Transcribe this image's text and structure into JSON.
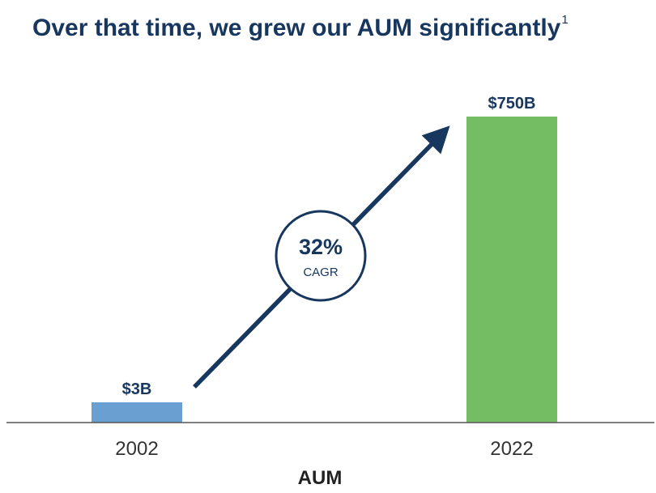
{
  "title": {
    "text": "Over that time, we grew our AUM significantly",
    "footnote": "1"
  },
  "chart_data": {
    "type": "bar",
    "categories": [
      "2002",
      "2022"
    ],
    "values": [
      3,
      750
    ],
    "value_labels": [
      "$3B",
      "$750B"
    ],
    "xlabel": "AUM",
    "ylabel": "",
    "ylim": [
      0,
      750
    ],
    "grid": false,
    "bar_colors": [
      "#6a9fd2",
      "#74bd62"
    ],
    "annotation": {
      "value": "32%",
      "label": "CAGR",
      "arrow_color": "#17375e"
    }
  }
}
